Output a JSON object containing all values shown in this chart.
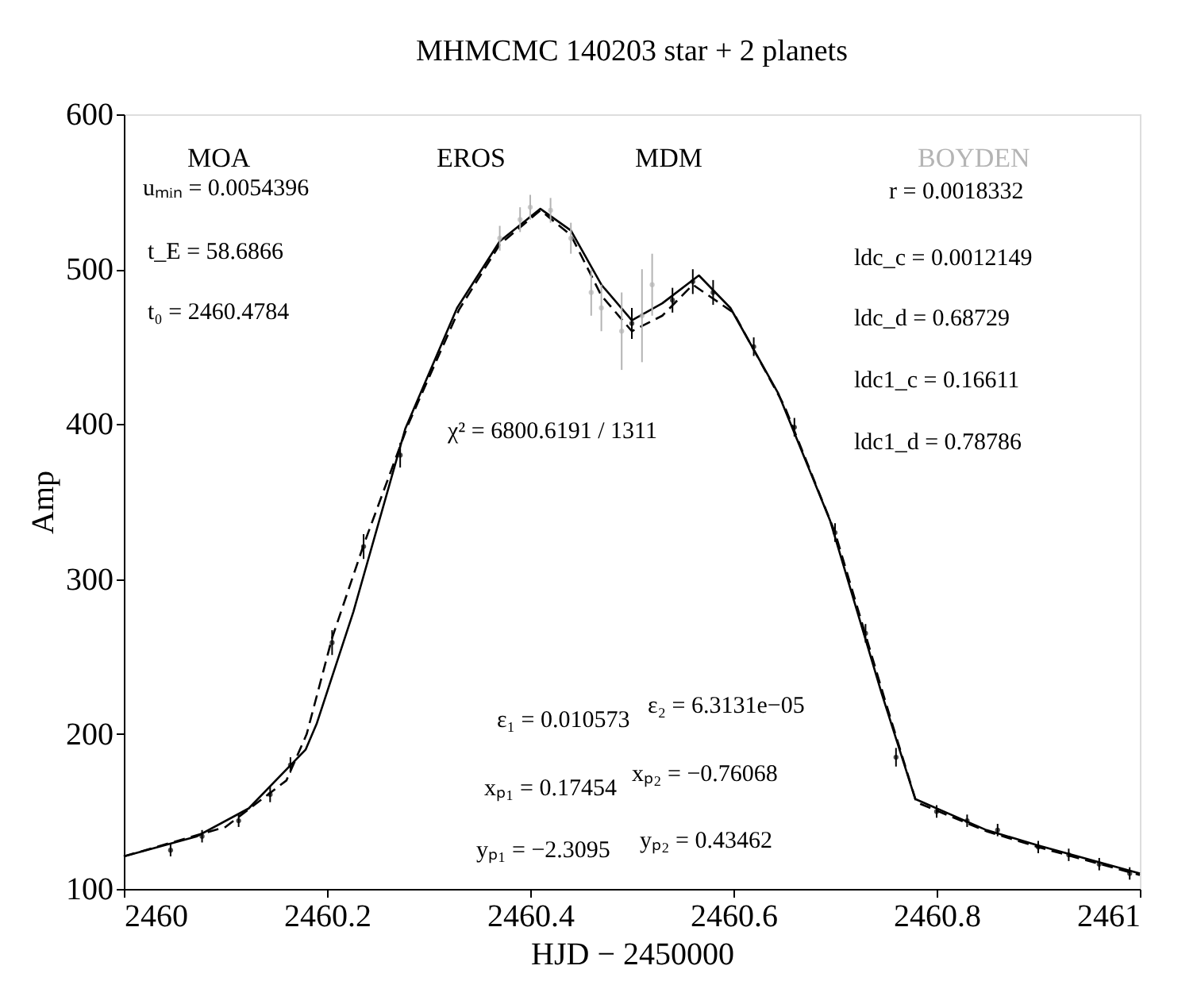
{
  "chart_data": {
    "type": "line",
    "title": "MHMCMC 140203 star + 2 planets",
    "xlabel": "HJD − 2450000",
    "ylabel": "Amp",
    "xlim": [
      2460,
      2461
    ],
    "xticks": [
      2460,
      2460.2,
      2460.4,
      2460.6,
      2460.8,
      2461
    ],
    "ylim": [
      100,
      600
    ],
    "yticks": [
      100,
      200,
      300,
      400,
      500,
      600
    ],
    "grid": false,
    "series": [
      {
        "color": "#000000",
        "line_style": "solid",
        "x": [
          2460,
          2460.072,
          2460.123,
          2460.179,
          2460.19,
          2460.226,
          2460.277,
          2460.328,
          2460.37,
          2460.41,
          2460.44,
          2460.47,
          2460.5,
          2460.53,
          2460.566,
          2460.597,
          2460.644,
          2460.695,
          2460.746,
          2460.779,
          2460.849,
          2460.9,
          2461
        ],
        "values": [
          121,
          134,
          152,
          190,
          207,
          279,
          397,
          475,
          518,
          539,
          525,
          490,
          467,
          478,
          496,
          475,
          420,
          338,
          226,
          158,
          138,
          128,
          110
        ]
      },
      {
        "color": "#000000",
        "line_style": "dashed",
        "x": [
          2460,
          2460.1,
          2460.16,
          2460.18,
          2460.205,
          2460.236,
          2460.28,
          2460.33,
          2460.37,
          2460.41,
          2460.44,
          2460.47,
          2460.5,
          2460.53,
          2460.56,
          2460.6,
          2460.65,
          2460.7,
          2460.75,
          2460.78,
          2460.85,
          2460.9,
          2461
        ],
        "values": [
          121,
          140,
          170,
          200,
          262,
          322,
          400,
          474,
          516,
          538,
          522,
          483,
          460,
          470,
          490,
          472,
          412,
          330,
          220,
          156,
          137,
          127,
          109
        ]
      },
      {
        "type": "scatter",
        "color": "#000000",
        "marker": "circle",
        "x": [
          2460.046,
          2460.077,
          2460.113,
          2460.144,
          2460.164,
          2460.205,
          2460.236,
          2460.272,
          2460.5,
          2460.54,
          2460.56,
          2460.58,
          2460.62,
          2460.66,
          2460.7,
          2460.73,
          2460.76,
          2460.8,
          2460.83,
          2460.86,
          2460.9,
          2460.93,
          2460.96,
          2460.99
        ],
        "values": [
          125,
          134,
          144,
          161,
          180,
          259,
          321,
          380,
          465,
          480,
          492,
          485,
          450,
          398,
          330,
          265,
          185,
          150,
          144,
          138,
          127,
          122,
          116,
          110
        ],
        "errors": [
          4,
          4,
          4,
          5,
          5,
          8,
          8,
          8,
          10,
          8,
          8,
          8,
          6,
          6,
          6,
          6,
          6,
          4,
          4,
          4,
          4,
          4,
          4,
          4
        ]
      },
      {
        "type": "scatter",
        "name": "BOYDEN",
        "color": "#b4b4b4",
        "marker": "circle",
        "x": [
          2460.37,
          2460.39,
          2460.4,
          2460.42,
          2460.44,
          2460.46,
          2460.47,
          2460.49,
          2460.51,
          2460.52
        ],
        "values": [
          520,
          532,
          540,
          538,
          520,
          485,
          475,
          460,
          470,
          490
        ],
        "errors": [
          8,
          8,
          8,
          8,
          10,
          15,
          15,
          25,
          30,
          20
        ]
      }
    ],
    "annotations": [
      "MOA",
      "EROS",
      "MDM",
      "uₘᵢₙ = 0.0054396",
      "t_E = 58.6866",
      "t₀ = 2460.4784",
      "r = 0.0018332",
      "ldc_c = 0.0012149",
      "ldc_d = 0.68729",
      "ldc1_c = 0.16611",
      "ldc1_d = 0.78786",
      "χ² = 6800.6191 / 1311",
      "ε₁ = 0.010573",
      "xₚ₁ = 0.17454",
      "yₚ₁ = −2.3095",
      "ε₂ = 6.3131e−05",
      "xₚ₂ = −0.76068",
      "yₚ₂ = 0.43462"
    ]
  }
}
